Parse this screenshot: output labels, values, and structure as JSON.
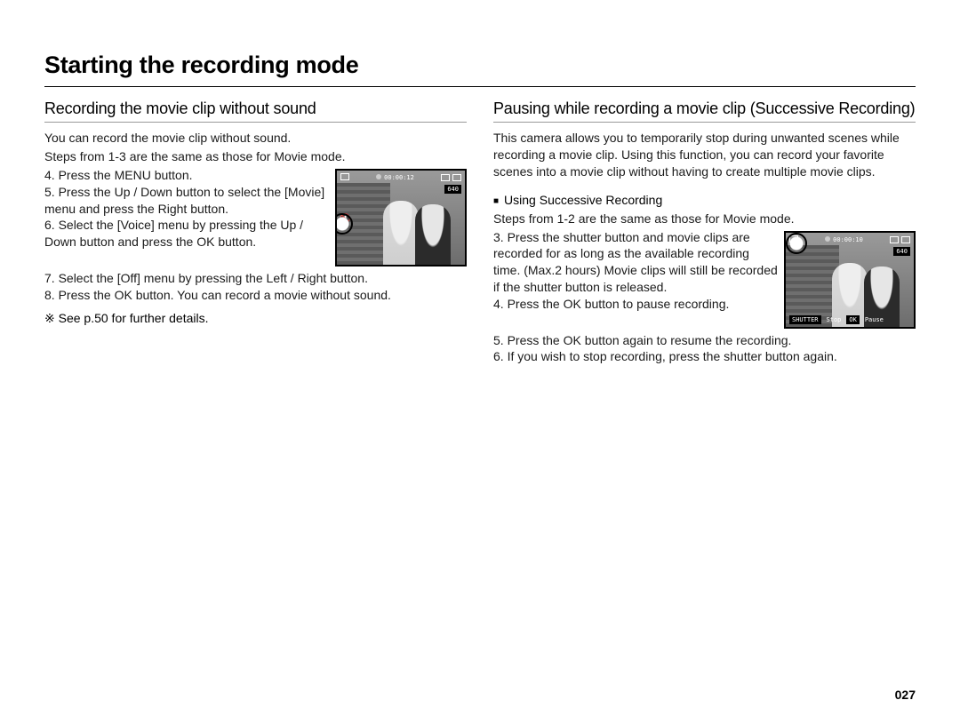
{
  "page": {
    "heading": "Starting the recording mode",
    "number": "027"
  },
  "left": {
    "section_title": "Recording the movie clip without sound",
    "intro": "You can record the movie clip without sound.",
    "steps_intro": "Steps from 1-3 are the same as those for Movie mode.",
    "step4": "4. Press the MENU button.",
    "step5": "5. Press the Up / Down button to select the [Movie] menu and press the Right button.",
    "step6": "6. Select the [Voice] menu by pressing the Up / Down button and press the OK button.",
    "step7": "7. Select the [Off] menu by pressing the Left / Right button.",
    "step8": "8. Press the OK button. You can record a movie without sound.",
    "note": "※ See p.50 for further details.",
    "lcd": {
      "timer": "00:00:12",
      "res": "640"
    }
  },
  "right": {
    "section_title": "Pausing while recording a movie clip (Successive Recording)",
    "intro": "This camera allows you to temporarily stop during unwanted scenes while recording a movie clip. Using this function, you can record your favorite scenes into a movie clip without having to create multiple movie clips.",
    "sub_title": "Using Successive Recording",
    "steps_intro": "Steps from 1-2 are the same as those for Movie mode.",
    "step3": "3. Press the shutter button and movie clips are recorded for as long as the available recording time. (Max.2 hours) Movie clips will still be recorded if the shutter button is released.",
    "step4": "4. Press the OK button to pause recording.",
    "step5": "5. Press the OK button again to resume the recording.",
    "step6": "6. If you wish to stop recording, press the shutter button again.",
    "lcd": {
      "timer": "00:00:10",
      "res": "640",
      "btn1_label": "SHUTTER",
      "btn1_action": "Stop",
      "btn2_label": "OK",
      "btn2_action": "Pause"
    }
  },
  "style": {
    "heading_fontsize": 27,
    "section_fontsize": 18,
    "body_fontsize": 14,
    "text_color": "#1a1a1a",
    "divider_color": "#000000",
    "section_underline_color": "#999999",
    "lcd_border_color": "#000000"
  }
}
